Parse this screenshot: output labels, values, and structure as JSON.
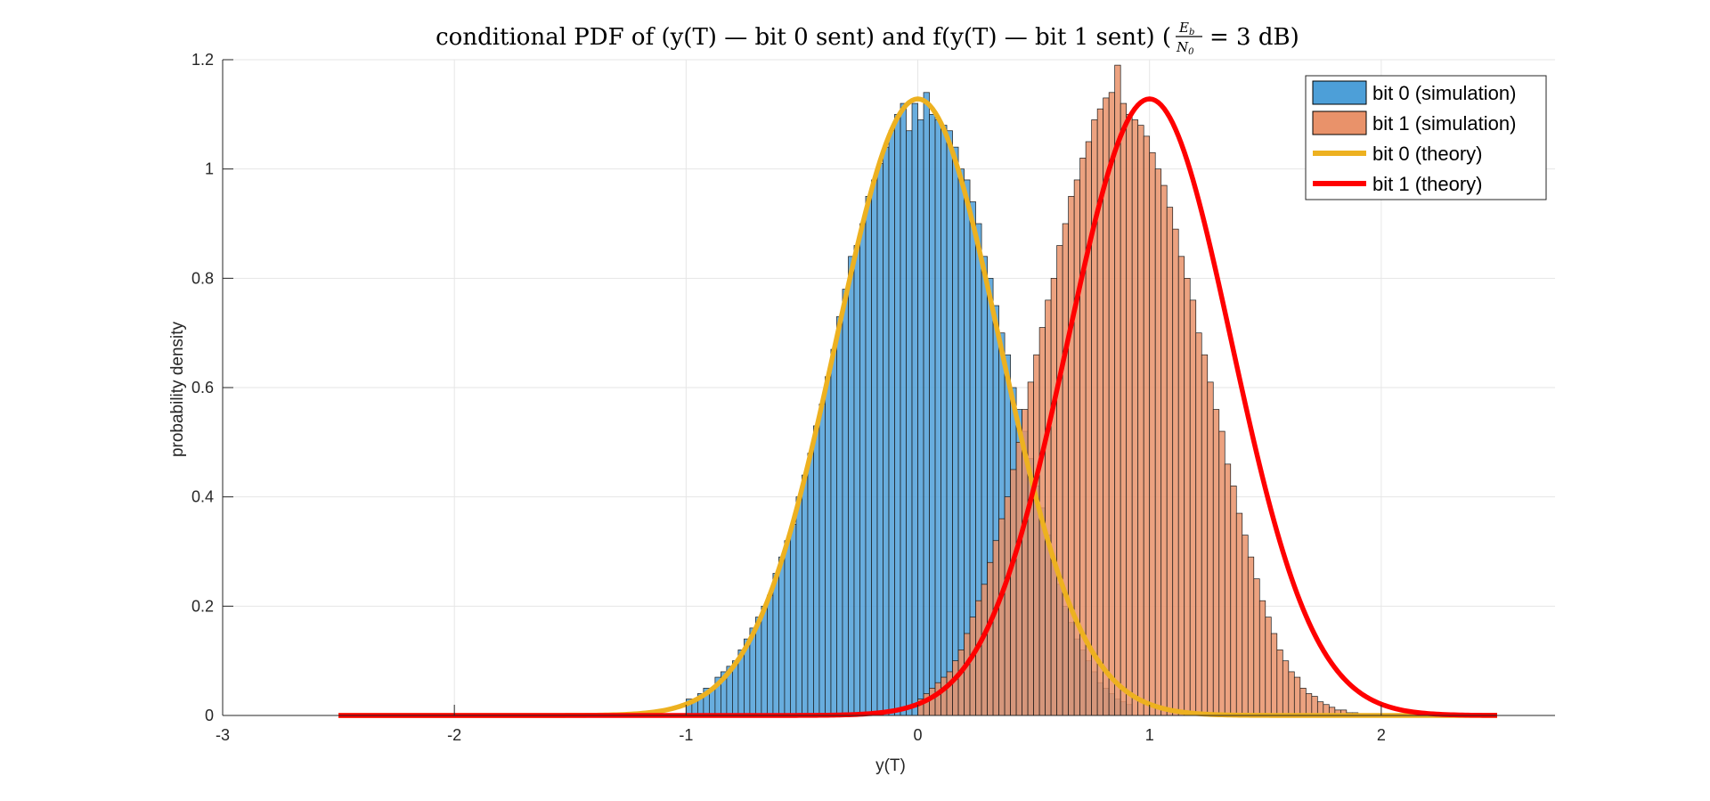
{
  "chart_data": {
    "type": "bar",
    "title": {
      "prefix": "conditional PDF of (y(T) — bit 0 sent) and f(y(T) — bit 1 sent) (",
      "fraction_numerator": "E",
      "fraction_numerator_sub": "b",
      "fraction_denominator": "N",
      "fraction_denominator_sub": "0",
      "suffix": "= 3 dB)"
    },
    "xlabel": "y(T)",
    "ylabel": "probability density",
    "xlim": [
      -3,
      2.75
    ],
    "ylim": [
      0,
      1.2
    ],
    "xticks": [
      -3,
      -2,
      -1,
      0,
      1,
      2
    ],
    "yticks": [
      0,
      0.2,
      0.4,
      0.6,
      0.8,
      1,
      1.2
    ],
    "ytick_labels": [
      "0",
      "0.2",
      "0.4",
      "0.6",
      "0.8",
      "1",
      "1.2"
    ],
    "grid": true,
    "legend_position": "top-right",
    "histogram_bin_width": 0.025,
    "series": [
      {
        "name": "bit 0 (simulation)",
        "kind": "histogram",
        "color": "#4D9FD8",
        "bin_start": -1.0,
        "values": [
          0.03,
          0.03,
          0.04,
          0.05,
          0.05,
          0.07,
          0.08,
          0.09,
          0.1,
          0.12,
          0.14,
          0.16,
          0.18,
          0.2,
          0.22,
          0.26,
          0.29,
          0.32,
          0.35,
          0.4,
          0.44,
          0.48,
          0.53,
          0.57,
          0.62,
          0.67,
          0.73,
          0.78,
          0.84,
          0.86,
          0.9,
          0.95,
          0.98,
          1.01,
          1.04,
          1.07,
          1.1,
          1.12,
          1.07,
          1.12,
          1.09,
          1.14,
          1.1,
          1.09,
          1.08,
          1.07,
          1.04,
          1.0,
          0.98,
          0.94,
          0.9,
          0.84,
          0.8,
          0.75,
          0.7,
          0.66,
          0.6,
          0.56,
          0.52,
          0.47,
          0.42,
          0.38,
          0.33,
          0.28,
          0.24,
          0.2,
          0.17,
          0.14,
          0.12,
          0.1,
          0.08,
          0.06,
          0.05,
          0.04,
          0.03,
          0.025,
          0.02
        ]
      },
      {
        "name": "bit 1 (simulation)",
        "kind": "histogram",
        "color": "#E9926A",
        "bin_start": 0.0,
        "values": [
          0.03,
          0.04,
          0.05,
          0.06,
          0.07,
          0.08,
          0.1,
          0.12,
          0.15,
          0.18,
          0.21,
          0.24,
          0.28,
          0.32,
          0.36,
          0.4,
          0.45,
          0.5,
          0.56,
          0.61,
          0.66,
          0.71,
          0.76,
          0.8,
          0.86,
          0.9,
          0.95,
          0.98,
          1.02,
          1.05,
          1.09,
          1.11,
          1.13,
          1.14,
          1.19,
          1.12,
          1.1,
          1.09,
          1.08,
          1.06,
          1.03,
          1.0,
          0.97,
          0.93,
          0.89,
          0.84,
          0.8,
          0.76,
          0.7,
          0.66,
          0.61,
          0.56,
          0.52,
          0.46,
          0.42,
          0.37,
          0.33,
          0.29,
          0.25,
          0.21,
          0.18,
          0.15,
          0.12,
          0.1,
          0.08,
          0.07,
          0.05,
          0.04,
          0.035,
          0.025,
          0.02,
          0.015,
          0.01,
          0.01,
          0.005,
          0.005
        ]
      },
      {
        "name": "bit 0 (theory)",
        "kind": "gaussian",
        "color": "#EDB120",
        "mean": 0,
        "std": 0.3536,
        "x_range": [
          -2.5,
          2.5
        ]
      },
      {
        "name": "bit 1 (theory)",
        "kind": "gaussian",
        "color": "#FF0000",
        "mean": 1,
        "std": 0.3536,
        "x_range": [
          -2.5,
          2.5
        ]
      }
    ]
  }
}
